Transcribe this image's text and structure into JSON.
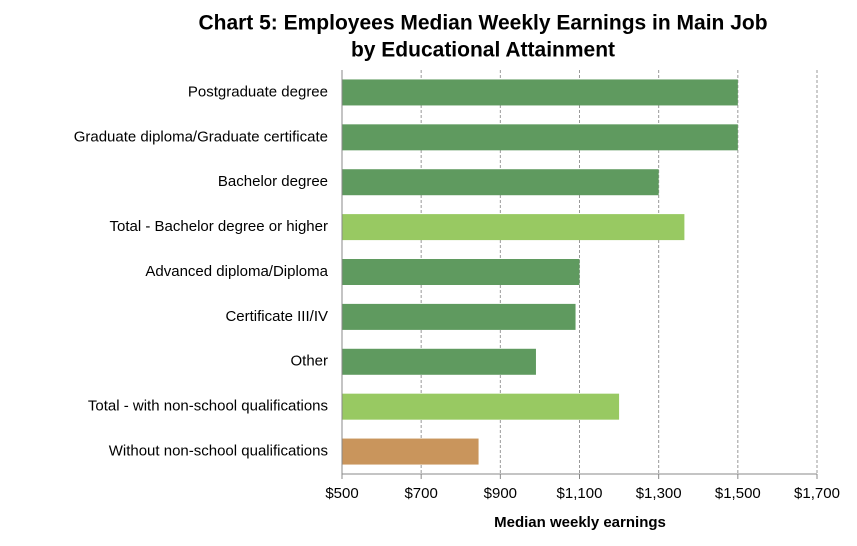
{
  "chart_data": {
    "type": "bar",
    "orientation": "horizontal",
    "title": [
      "Chart 5: Employees Median Weekly Earnings in Main Job",
      "by Educational Attainment"
    ],
    "x_label": "Median weekly earnings",
    "categories": [
      "Postgraduate degree",
      "Graduate diploma/Graduate certificate",
      "Bachelor degree",
      "Total - Bachelor degree or higher",
      "Advanced diploma/Diploma",
      "Certificate III/IV",
      "Other",
      "Total - with non-school qualifications",
      "Without non-school qualifications"
    ],
    "values": [
      1500,
      1500,
      1300,
      1365,
      1100,
      1090,
      990,
      1200,
      845
    ],
    "colors": [
      "#5f9a5f",
      "#5f9a5f",
      "#5f9a5f",
      "#98c962",
      "#5f9a5f",
      "#5f9a5f",
      "#5f9a5f",
      "#98c962",
      "#c9955c"
    ],
    "xlim": [
      500,
      1700
    ],
    "xticks": [
      {
        "value": 500,
        "label": "$500"
      },
      {
        "value": 700,
        "label": "$700"
      },
      {
        "value": 900,
        "label": "$900"
      },
      {
        "value": 1100,
        "label": "$1,100"
      },
      {
        "value": 1300,
        "label": "$1,300"
      },
      {
        "value": 1500,
        "label": "$1,500"
      },
      {
        "value": 1700,
        "label": "$1,700"
      }
    ],
    "grid": true
  }
}
